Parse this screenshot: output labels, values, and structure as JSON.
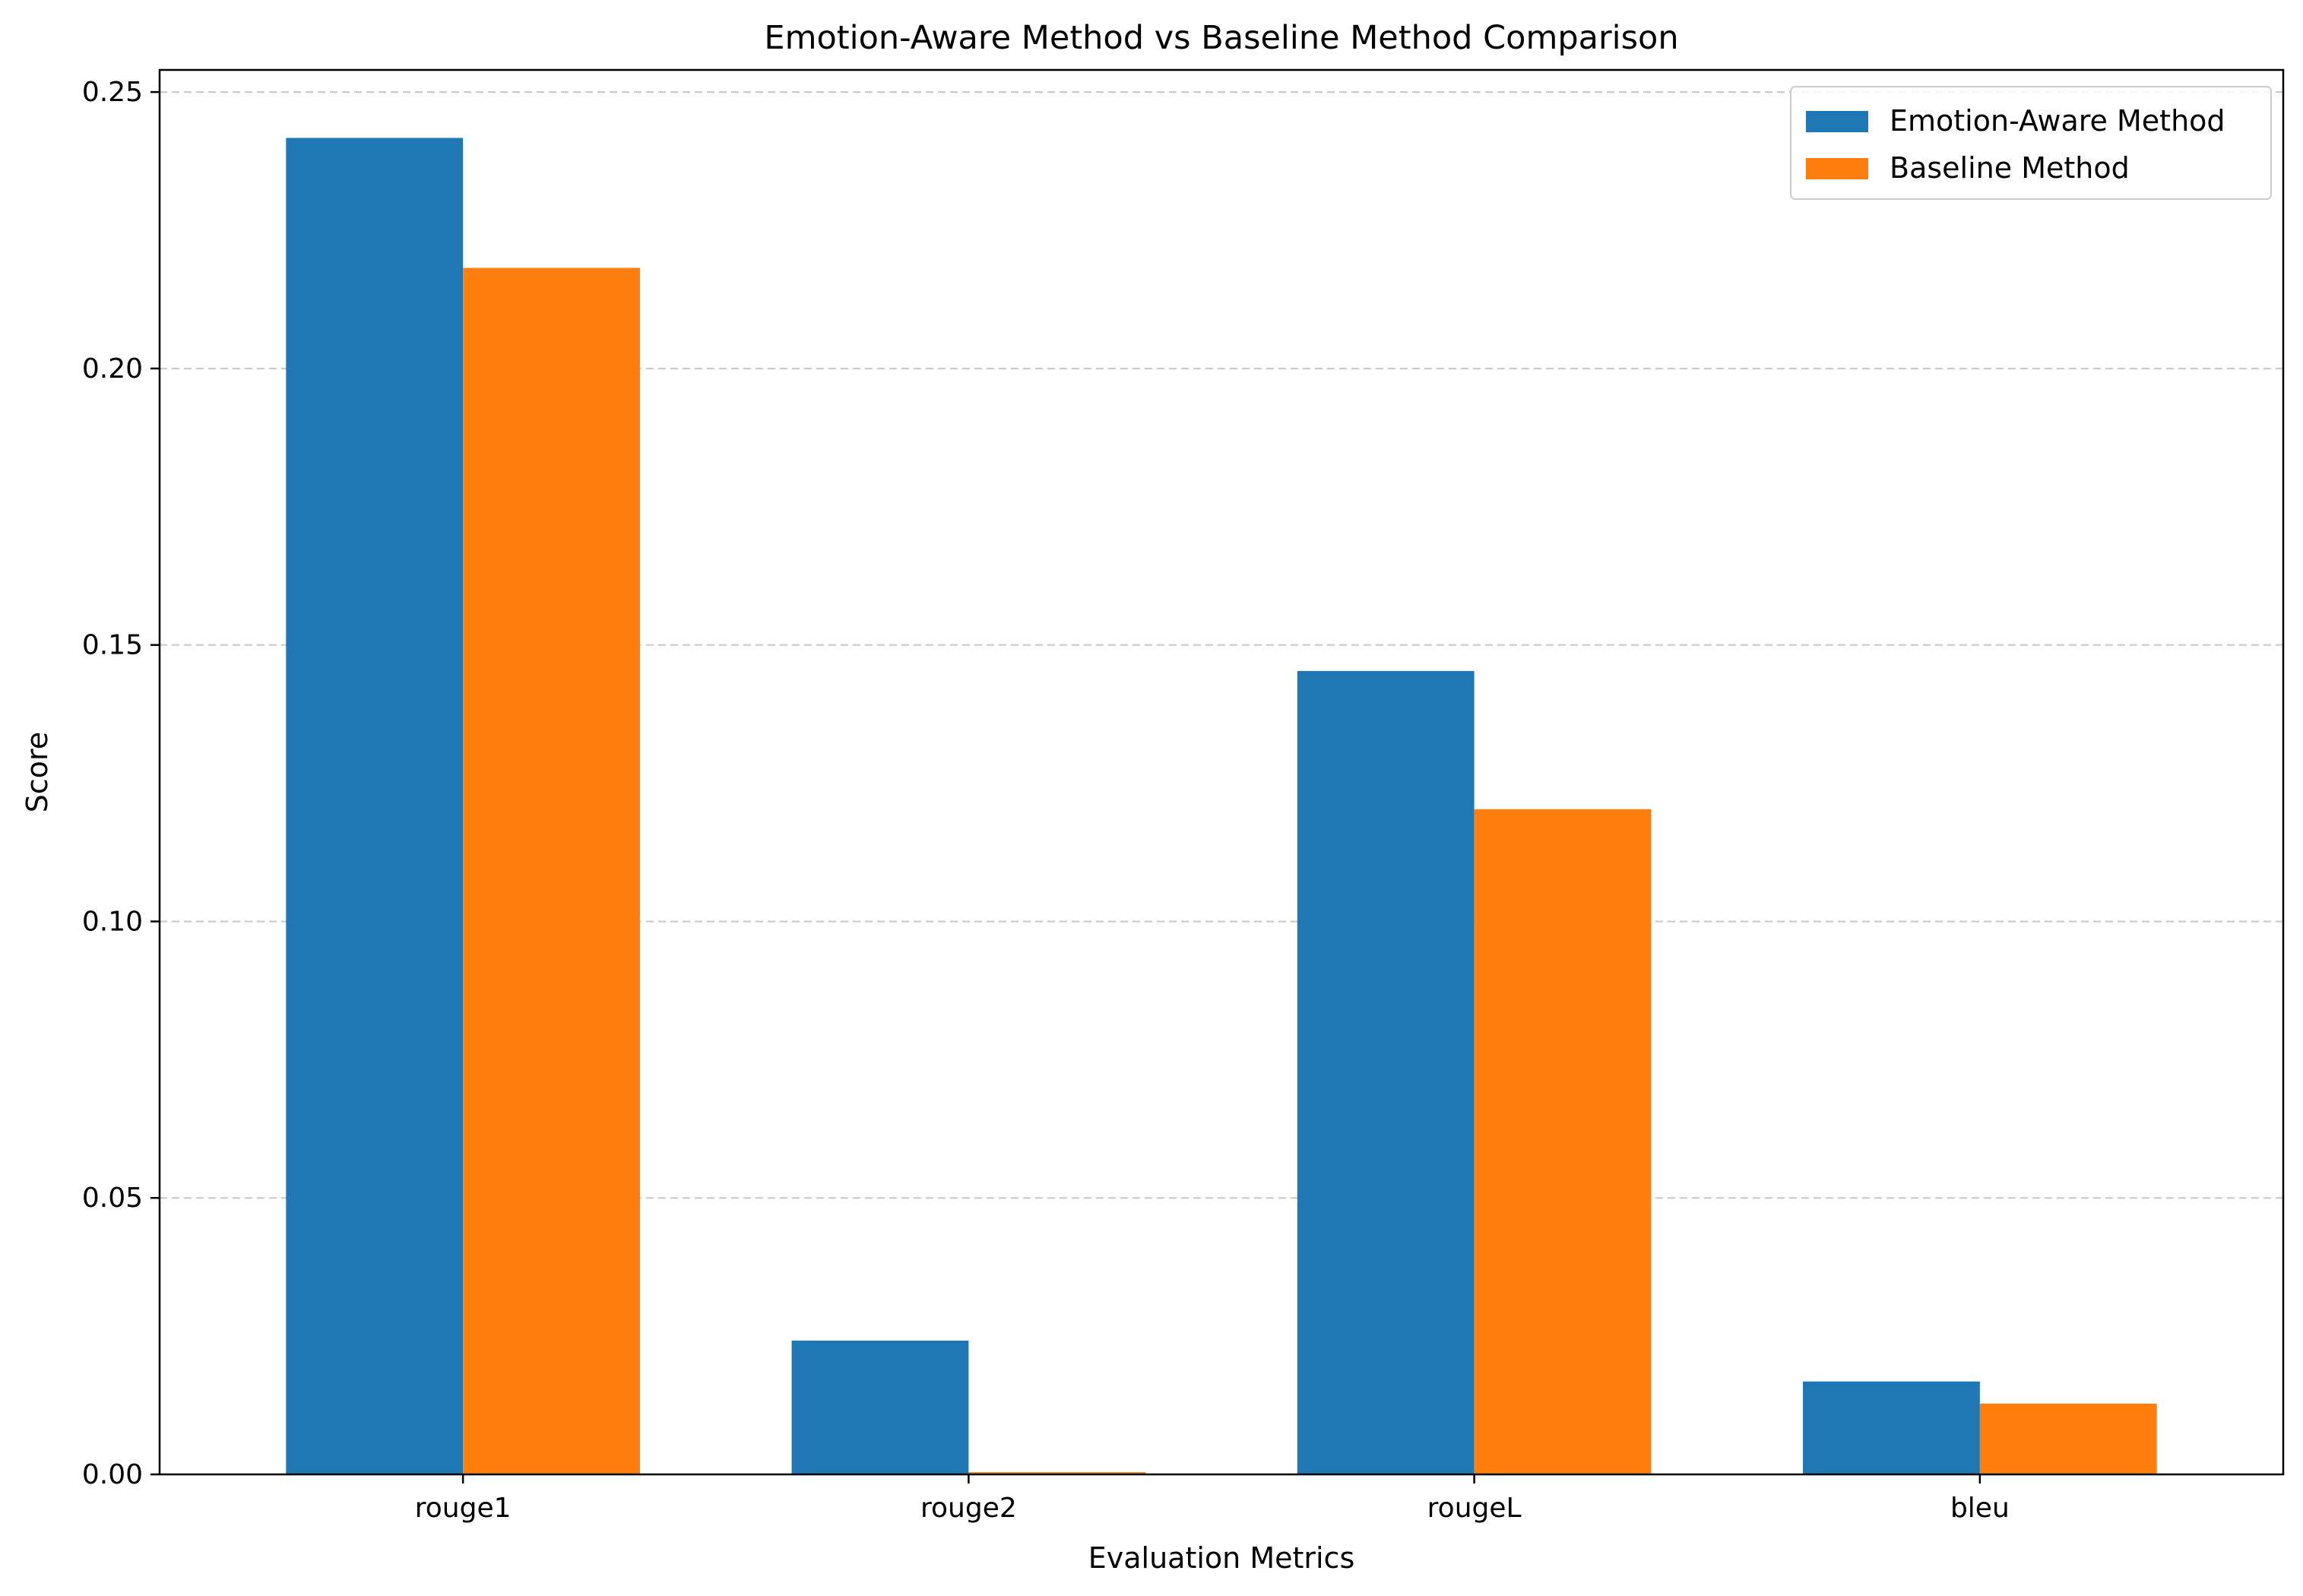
{
  "chart_data": {
    "type": "bar",
    "title": "Emotion-Aware Method vs Baseline Method Comparison",
    "xlabel": "Evaluation Metrics",
    "ylabel": "Score",
    "categories": [
      "rouge1",
      "rouge2",
      "rougeL",
      "bleu"
    ],
    "series": [
      {
        "name": "Emotion-Aware Method",
        "color": "#1f77b4",
        "values": [
          0.2417,
          0.0242,
          0.1453,
          0.0168
        ]
      },
      {
        "name": "Baseline Method",
        "color": "#ff7f0e",
        "values": [
          0.2182,
          0.0004,
          0.1203,
          0.0128
        ]
      }
    ],
    "ylim": [
      0,
      0.254
    ],
    "yticks": [
      0.0,
      0.05,
      0.1,
      0.15,
      0.2,
      0.25
    ],
    "ytick_labels": [
      "0.00",
      "0.05",
      "0.10",
      "0.15",
      "0.20",
      "0.25"
    ],
    "grid": "y-dashed",
    "legend_position": "top-right"
  }
}
